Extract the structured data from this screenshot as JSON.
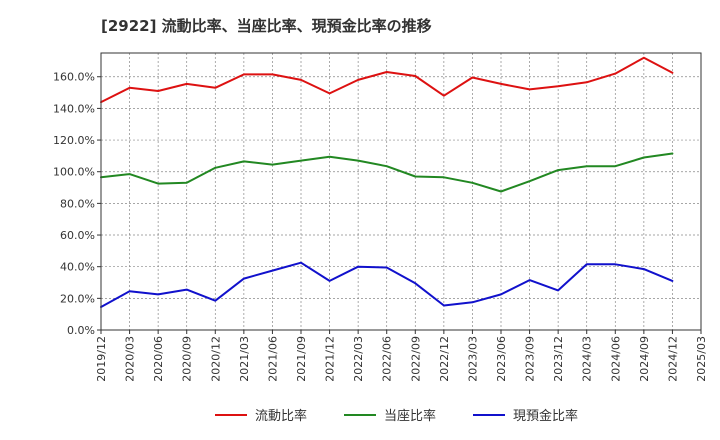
{
  "chart_data": {
    "type": "line",
    "title": "[2922]  流動比率、当座比率、現預金比率の推移",
    "xlabel": "",
    "ylabel": "",
    "ylim": [
      0,
      175
    ],
    "yticks": [
      0,
      20,
      40,
      60,
      80,
      100,
      120,
      140,
      160
    ],
    "ytick_labels": [
      "0.0%",
      "20.0%",
      "40.0%",
      "60.0%",
      "80.0%",
      "100.0%",
      "120.0%",
      "140.0%",
      "160.0%"
    ],
    "grid": true,
    "legend_position": "bottom",
    "x_ticks": [
      "2019/12",
      "2020/03",
      "2020/06",
      "2020/09",
      "2020/12",
      "2021/03",
      "2021/06",
      "2021/09",
      "2021/12",
      "2022/03",
      "2022/06",
      "2022/09",
      "2022/12",
      "2023/03",
      "2023/06",
      "2023/09",
      "2023/12",
      "2024/03",
      "2024/06",
      "2024/09",
      "2024/12",
      "2025/03"
    ],
    "x": [
      "2019/12",
      "2020/03",
      "2020/06",
      "2020/09",
      "2020/12",
      "2021/03",
      "2021/06",
      "2021/09",
      "2021/12",
      "2022/03",
      "2022/06",
      "2022/09",
      "2022/12",
      "2023/03",
      "2023/06",
      "2023/09",
      "2023/12",
      "2024/03",
      "2024/06",
      "2024/09",
      "2024/12"
    ],
    "series": [
      {
        "name": "流動比率",
        "color": "#dd1111",
        "values": [
          144,
          153,
          151,
          155.5,
          153,
          161.5,
          161.5,
          158,
          149.5,
          158,
          163,
          160.5,
          148,
          159.5,
          155.5,
          152,
          154,
          156.5,
          162,
          172,
          162.5
        ]
      },
      {
        "name": "当座比率",
        "color": "#228822",
        "values": [
          96.5,
          98.5,
          92.5,
          93,
          102.5,
          106.5,
          104.5,
          107,
          109.5,
          107,
          103.5,
          97,
          96.5,
          93,
          87.5,
          94,
          101,
          103.5,
          103.5,
          109,
          111.5
        ]
      },
      {
        "name": "現預金比率",
        "color": "#1111cc",
        "values": [
          14.5,
          24.5,
          22.5,
          25.5,
          18.5,
          32.5,
          37.5,
          42.5,
          31,
          40,
          39.5,
          29.5,
          15.5,
          17.5,
          22.5,
          31.5,
          25,
          41.5,
          41.5,
          38.5,
          31
        ]
      }
    ]
  }
}
